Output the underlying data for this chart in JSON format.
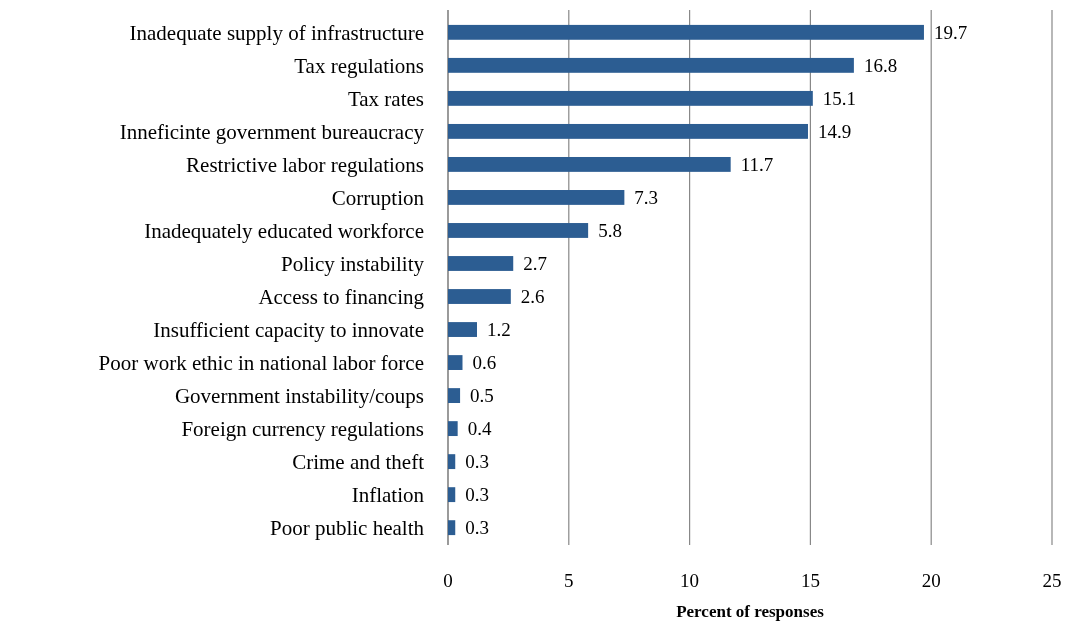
{
  "chart_data": {
    "type": "bar",
    "orientation": "horizontal",
    "xlabel": "Percent of responses",
    "categories": [
      "Inadequate supply of infrastructure",
      "Tax regulations",
      "Tax rates",
      "Inneficinte government bureaucracy",
      "Restrictive labor regulations",
      "Corruption",
      "Inadequately educated workforce",
      "Policy instability",
      "Access to financing",
      "Insufficient capacity to innovate",
      "Poor work ethic in national labor force",
      "Government instability/coups",
      "Foreign currency regulations",
      "Crime and theft",
      "Inflation",
      "Poor public health"
    ],
    "values": [
      19.7,
      16.8,
      15.1,
      14.9,
      11.7,
      7.3,
      5.8,
      2.7,
      2.6,
      1.2,
      0.6,
      0.5,
      0.4,
      0.3,
      0.3,
      0.3
    ],
    "color": "#2c5d92",
    "xlim": [
      0,
      25
    ],
    "xticks": [
      0,
      5,
      10,
      15,
      20,
      25
    ],
    "grid": "x",
    "data_labels": true
  }
}
